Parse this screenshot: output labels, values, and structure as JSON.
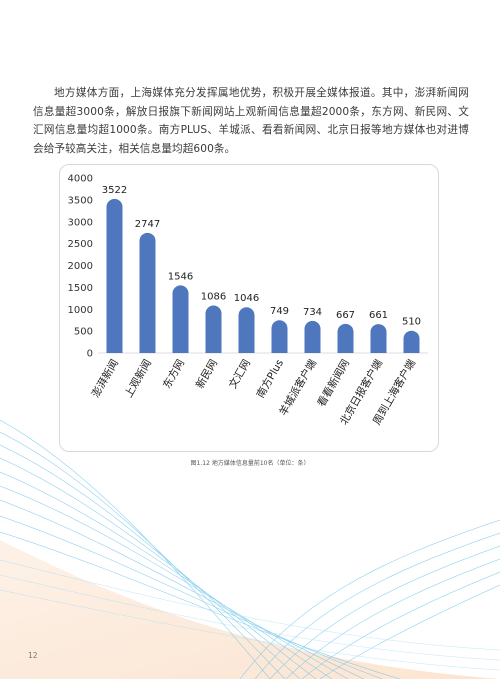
{
  "paragraph": "地方媒体方面，上海媒体充分发挥属地优势，积极开展全媒体报道。其中，澎湃新闻网信息量超3000条，解放日报旗下新闻网站上观新闻信息量超2000条，东方网、新民网、文汇网信息量均超1000条。南方PLUS、羊城派、看看新闻网、北京日报等地方媒体也对进博会给予较高关注，相关信息量均超600条。",
  "caption": "图1.12 地方媒体信息量前10名（单位：条）",
  "page_number": "12",
  "colors": {
    "bar": "#4f77bd",
    "accent_wave": "#6cc3ea",
    "peach": "#fbe1cc"
  },
  "chart_data": {
    "type": "bar",
    "categories": [
      "澎湃新闻",
      "上观新闻",
      "东方网",
      "新民网",
      "文汇网",
      "南方Plus",
      "羊城派客户端",
      "看看新闻网",
      "北京日报客户端",
      "周到上海客户端"
    ],
    "values": [
      3522,
      2747,
      1546,
      1086,
      1046,
      749,
      734,
      667,
      661,
      510
    ],
    "yticks": [
      "0",
      "500",
      "1000",
      "1500",
      "2000",
      "2500",
      "3000",
      "3500",
      "4000"
    ],
    "ylim": [
      0,
      4000
    ],
    "title": "",
    "xlabel": "",
    "ylabel": "",
    "grid": false
  }
}
